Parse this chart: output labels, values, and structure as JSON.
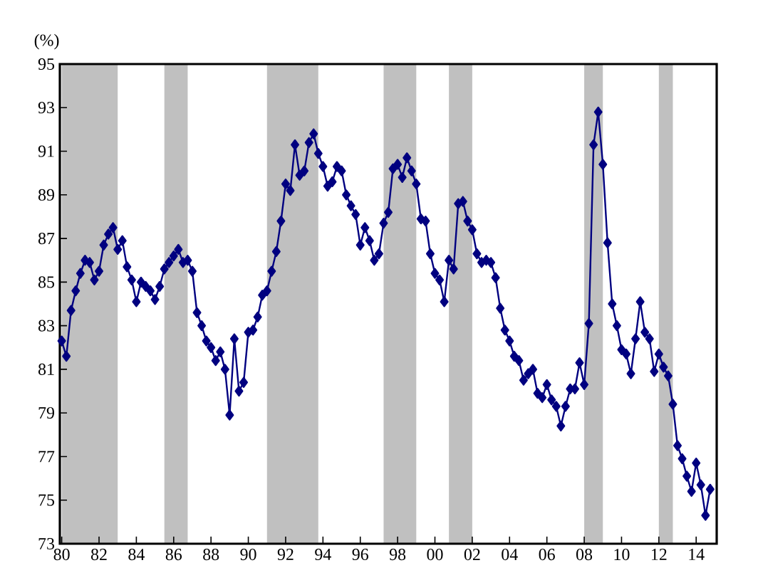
{
  "chart_data": {
    "type": "line",
    "ylabel": "(%)",
    "color": "#000080",
    "marker": "diamond",
    "x": [
      1980.0,
      1980.25,
      1980.5,
      1980.75,
      1981.0,
      1981.25,
      1981.5,
      1981.75,
      1982.0,
      1982.25,
      1982.5,
      1982.75,
      1983.0,
      1983.25,
      1983.5,
      1983.75,
      1984.0,
      1984.25,
      1984.5,
      1984.75,
      1985.0,
      1985.25,
      1985.5,
      1985.75,
      1986.0,
      1986.25,
      1986.5,
      1986.75,
      1987.0,
      1987.25,
      1987.5,
      1987.75,
      1988.0,
      1988.25,
      1988.5,
      1988.75,
      1989.0,
      1989.25,
      1989.5,
      1989.75,
      1990.0,
      1990.25,
      1990.5,
      1990.75,
      1991.0,
      1991.25,
      1991.5,
      1991.75,
      1992.0,
      1992.25,
      1992.5,
      1992.75,
      1993.0,
      1993.25,
      1993.5,
      1993.75,
      1994.0,
      1994.25,
      1994.5,
      1994.75,
      1995.0,
      1995.25,
      1995.5,
      1995.75,
      1996.0,
      1996.25,
      1996.5,
      1996.75,
      1997.0,
      1997.25,
      1997.5,
      1997.75,
      1998.0,
      1998.25,
      1998.5,
      1998.75,
      1999.0,
      1999.25,
      1999.5,
      1999.75,
      2000.0,
      2000.25,
      2000.5,
      2000.75,
      2001.0,
      2001.25,
      2001.5,
      2001.75,
      2002.0,
      2002.25,
      2002.5,
      2002.75,
      2003.0,
      2003.25,
      2003.5,
      2003.75,
      2004.0,
      2004.25,
      2004.5,
      2004.75,
      2005.0,
      2005.25,
      2005.5,
      2005.75,
      2006.0,
      2006.25,
      2006.5,
      2006.75,
      2007.0,
      2007.25,
      2007.5,
      2007.75,
      2008.0,
      2008.25,
      2008.5,
      2008.75,
      2009.0,
      2009.25,
      2009.5,
      2009.75,
      2010.0,
      2010.25,
      2010.5,
      2010.75,
      2011.0,
      2011.25,
      2011.5,
      2011.75,
      2012.0,
      2012.25,
      2012.5,
      2012.75,
      2013.0,
      2013.25,
      2013.5,
      2013.75,
      2014.0,
      2014.25,
      2014.5,
      2014.75
    ],
    "values": [
      82.3,
      81.6,
      83.7,
      84.6,
      85.4,
      86.0,
      85.9,
      85.1,
      85.5,
      86.7,
      87.2,
      87.5,
      86.5,
      86.9,
      85.7,
      85.1,
      84.1,
      85.0,
      84.8,
      84.6,
      84.2,
      84.8,
      85.6,
      85.9,
      86.2,
      86.5,
      85.9,
      86.0,
      85.5,
      83.6,
      83.0,
      82.3,
      82.0,
      81.4,
      81.8,
      81.0,
      78.9,
      82.4,
      80.0,
      80.4,
      82.7,
      82.8,
      83.4,
      84.4,
      84.6,
      85.5,
      86.4,
      87.8,
      89.5,
      89.2,
      91.3,
      89.9,
      90.1,
      91.4,
      91.8,
      90.9,
      90.3,
      89.4,
      89.6,
      90.3,
      90.1,
      89.0,
      88.5,
      88.1,
      86.7,
      87.5,
      86.9,
      86.0,
      86.3,
      87.7,
      88.2,
      90.2,
      90.4,
      89.8,
      90.7,
      90.1,
      89.5,
      87.9,
      87.8,
      86.3,
      85.4,
      85.1,
      84.1,
      86.0,
      85.6,
      88.6,
      88.7,
      87.8,
      87.4,
      86.3,
      85.9,
      86.0,
      85.9,
      85.2,
      83.8,
      82.8,
      82.3,
      81.6,
      81.4,
      80.5,
      80.8,
      81.0,
      79.9,
      79.7,
      80.3,
      79.6,
      79.3,
      78.4,
      79.3,
      80.1,
      80.1,
      81.3,
      80.3,
      83.1,
      91.3,
      92.8,
      90.4,
      86.8,
      84.0,
      83.0,
      81.9,
      81.7,
      80.8,
      82.4,
      84.1,
      82.7,
      82.4,
      80.9,
      81.7,
      81.1,
      80.7,
      79.4,
      77.5,
      76.9,
      76.1,
      75.4,
      76.7,
      75.7,
      74.3,
      75.5
    ],
    "xlim": [
      1979.9,
      2015.1
    ],
    "ylim": [
      73,
      95
    ],
    "xticks": [
      {
        "value": 1980,
        "label": "80"
      },
      {
        "value": 1982,
        "label": "82"
      },
      {
        "value": 1984,
        "label": "84"
      },
      {
        "value": 1986,
        "label": "86"
      },
      {
        "value": 1988,
        "label": "88"
      },
      {
        "value": 1990,
        "label": "90"
      },
      {
        "value": 1992,
        "label": "92"
      },
      {
        "value": 1994,
        "label": "94"
      },
      {
        "value": 1996,
        "label": "96"
      },
      {
        "value": 1998,
        "label": "98"
      },
      {
        "value": 2000,
        "label": "00"
      },
      {
        "value": 2002,
        "label": "02"
      },
      {
        "value": 2004,
        "label": "04"
      },
      {
        "value": 2006,
        "label": "06"
      },
      {
        "value": 2008,
        "label": "08"
      },
      {
        "value": 2010,
        "label": "10"
      },
      {
        "value": 2012,
        "label": "12"
      },
      {
        "value": 2014,
        "label": "14"
      }
    ],
    "yticks": [
      73,
      75,
      77,
      79,
      81,
      83,
      85,
      87,
      89,
      91,
      93,
      95
    ],
    "bands": [
      {
        "axis": "x",
        "from": 1980.0,
        "to": 1983.0,
        "color": "#c0c0c0"
      },
      {
        "axis": "x",
        "from": 1985.5,
        "to": 1986.75,
        "color": "#c0c0c0"
      },
      {
        "axis": "x",
        "from": 1991.0,
        "to": 1993.75,
        "color": "#c0c0c0"
      },
      {
        "axis": "x",
        "from": 1997.25,
        "to": 1999.0,
        "color": "#c0c0c0"
      },
      {
        "axis": "x",
        "from": 2000.75,
        "to": 2002.0,
        "color": "#c0c0c0"
      },
      {
        "axis": "x",
        "from": 2008.0,
        "to": 2009.0,
        "color": "#c0c0c0"
      },
      {
        "axis": "x",
        "from": 2012.0,
        "to": 2012.75,
        "color": "#c0c0c0"
      }
    ]
  }
}
